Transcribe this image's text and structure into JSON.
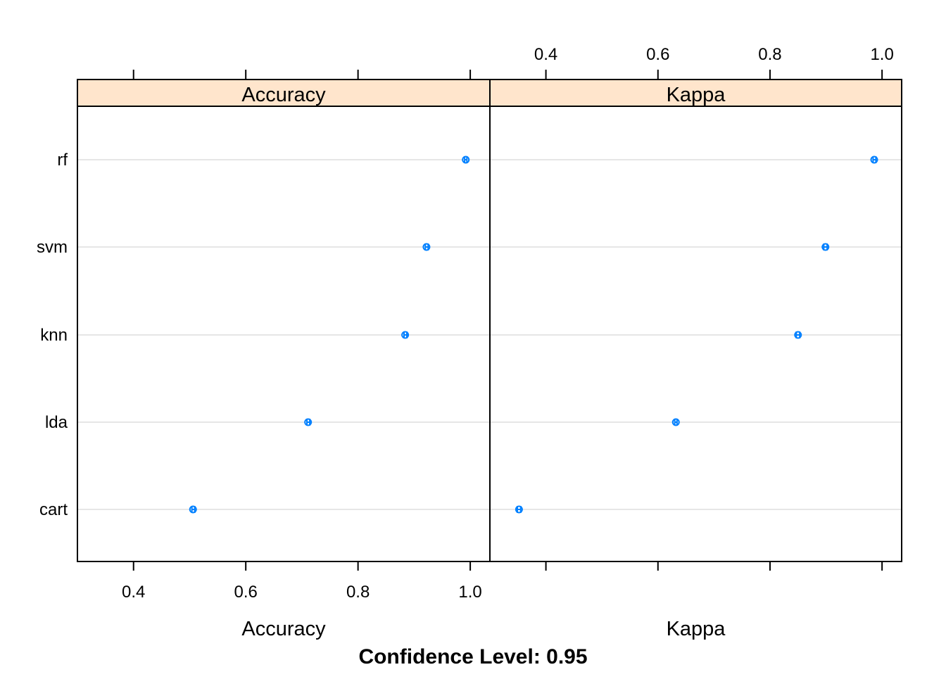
{
  "chart_data": {
    "type": "dotplot",
    "categories": [
      "rf",
      "svm",
      "knn",
      "lda",
      "cart"
    ],
    "xlim": [
      0.3,
      1.035
    ],
    "ticks": [
      0.4,
      0.6,
      0.8,
      1.0
    ],
    "tick_labels": [
      "0.4",
      "0.6",
      "0.8",
      "1.0"
    ],
    "grid": true,
    "footer": "Confidence Level: 0.95",
    "colors": {
      "strip": "#ffe5cc",
      "point": "#0080ff",
      "grid": "#e6e6e6",
      "frame": "#000000"
    },
    "panels": [
      {
        "strip": "Accuracy",
        "xlabel": "Accuracy",
        "tick_side": "bottom",
        "series": [
          {
            "model": "rf",
            "estimate": 0.992,
            "lower": 0.99,
            "upper": 0.994
          },
          {
            "model": "svm",
            "estimate": 0.922,
            "lower": 0.92,
            "upper": 0.925
          },
          {
            "model": "knn",
            "estimate": 0.884,
            "lower": 0.882,
            "upper": 0.887
          },
          {
            "model": "lda",
            "estimate": 0.711,
            "lower": 0.709,
            "upper": 0.714
          },
          {
            "model": "cart",
            "estimate": 0.506,
            "lower": 0.504,
            "upper": 0.509
          }
        ]
      },
      {
        "strip": "Kappa",
        "xlabel": "Kappa",
        "tick_side": "top",
        "series": [
          {
            "model": "rf",
            "estimate": 0.986,
            "lower": 0.984,
            "upper": 0.989
          },
          {
            "model": "svm",
            "estimate": 0.899,
            "lower": 0.896,
            "upper": 0.902
          },
          {
            "model": "knn",
            "estimate": 0.85,
            "lower": 0.847,
            "upper": 0.853
          },
          {
            "model": "lda",
            "estimate": 0.632,
            "lower": 0.63,
            "upper": 0.634
          },
          {
            "model": "cart",
            "estimate": 0.352,
            "lower": 0.349,
            "upper": 0.355
          }
        ]
      }
    ]
  }
}
